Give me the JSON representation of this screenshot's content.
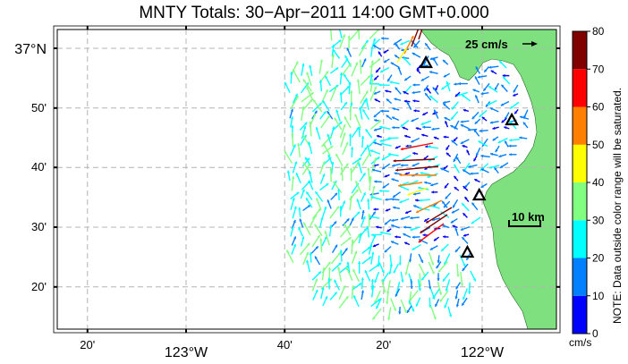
{
  "title": "MNTY Totals: 30−Apr−2011 14:00 GMT+0.000",
  "map": {
    "lon_labels": [
      {
        "lon": -123.333,
        "text": "20'",
        "major": false
      },
      {
        "lon": -123.0,
        "text": "123°W",
        "major": true
      },
      {
        "lon": -122.667,
        "text": "40'",
        "major": false
      },
      {
        "lon": -122.333,
        "text": "20'",
        "major": false
      },
      {
        "lon": -122.0,
        "text": "122°W",
        "major": true
      }
    ],
    "lat_labels": [
      {
        "lat": 37.0,
        "text": "37°N",
        "major": true
      },
      {
        "lat": 36.833,
        "text": "50'",
        "major": false
      },
      {
        "lat": 36.667,
        "text": "40'",
        "major": false
      },
      {
        "lat": 36.5,
        "text": "30'",
        "major": false
      },
      {
        "lat": 36.333,
        "text": "20'",
        "major": false
      }
    ],
    "reference_vector": {
      "label": "25 cm/s",
      "speed": 25
    },
    "scale_bar": {
      "label": "10 km",
      "km": 10
    },
    "sites": [
      {
        "lon": -122.19,
        "lat": 36.96
      },
      {
        "lon": -121.9,
        "lat": 36.8
      },
      {
        "lon": -122.01,
        "lat": 36.59
      },
      {
        "lon": -122.05,
        "lat": 36.43
      }
    ],
    "colors": {
      "land": "#7ee07e",
      "ocean": "#ffffff",
      "grid": "#b4b4b4"
    }
  },
  "colorbar": {
    "ticks": [
      "0",
      "10",
      "20",
      "30",
      "40",
      "50",
      "60",
      "70",
      "80"
    ],
    "colors": [
      "#0000ff",
      "#0080ff",
      "#00ffff",
      "#80ff80",
      "#ffff00",
      "#ff8000",
      "#ff0000",
      "#800000"
    ],
    "unit": "cm/s",
    "note": "NOTE: Data outside color range will be saturated."
  }
}
